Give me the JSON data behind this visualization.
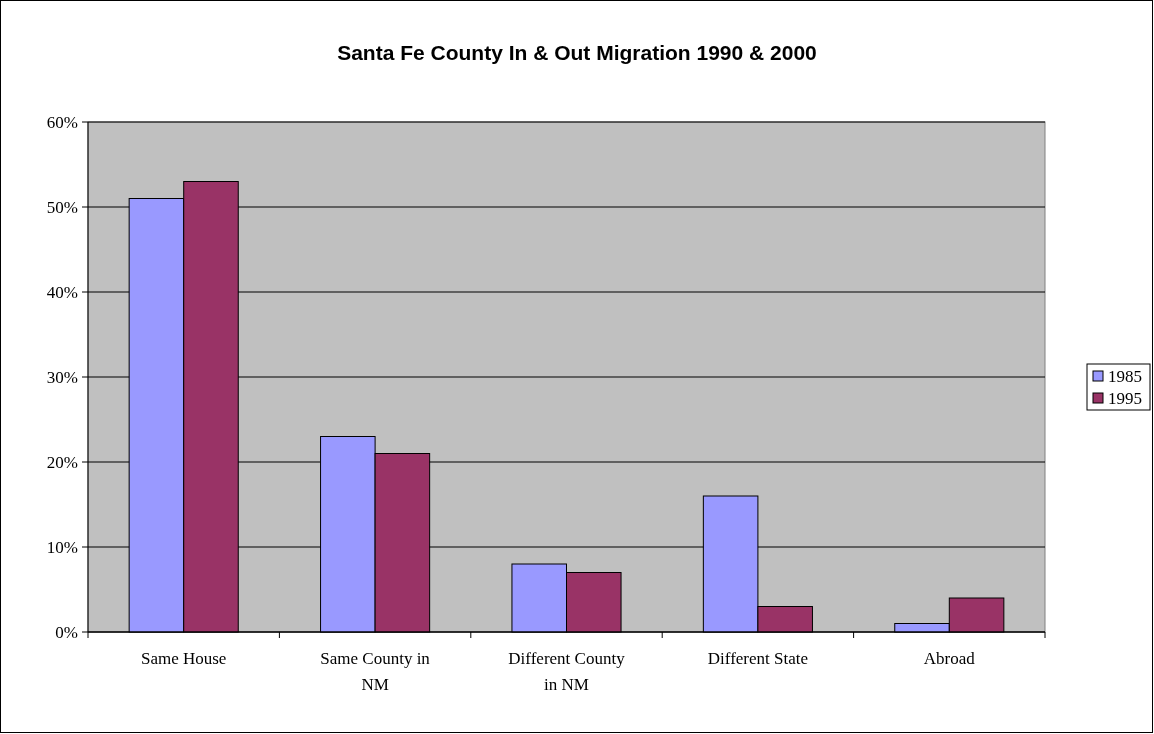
{
  "chart_data": {
    "type": "bar",
    "title": "Santa Fe County In & Out Migration 1990 & 2000",
    "categories": [
      "Same House",
      "Same County in NM",
      "Different County in NM",
      "Different State",
      "Abroad"
    ],
    "series": [
      {
        "name": "1985",
        "color": "#9999ff",
        "values": [
          51,
          23,
          8,
          16,
          1
        ]
      },
      {
        "name": "1995",
        "color": "#993366",
        "values": [
          53,
          21,
          7,
          3,
          4
        ]
      }
    ],
    "ylim": [
      0,
      60
    ],
    "yticks": [
      {
        "value": 0,
        "label": "0%"
      },
      {
        "value": 10,
        "label": "10%"
      },
      {
        "value": 20,
        "label": "20%"
      },
      {
        "value": 30,
        "label": "30%"
      },
      {
        "value": 40,
        "label": "40%"
      },
      {
        "value": 50,
        "label": "50%"
      },
      {
        "value": 60,
        "label": "60%"
      }
    ],
    "grid": "y",
    "legend": "right"
  }
}
